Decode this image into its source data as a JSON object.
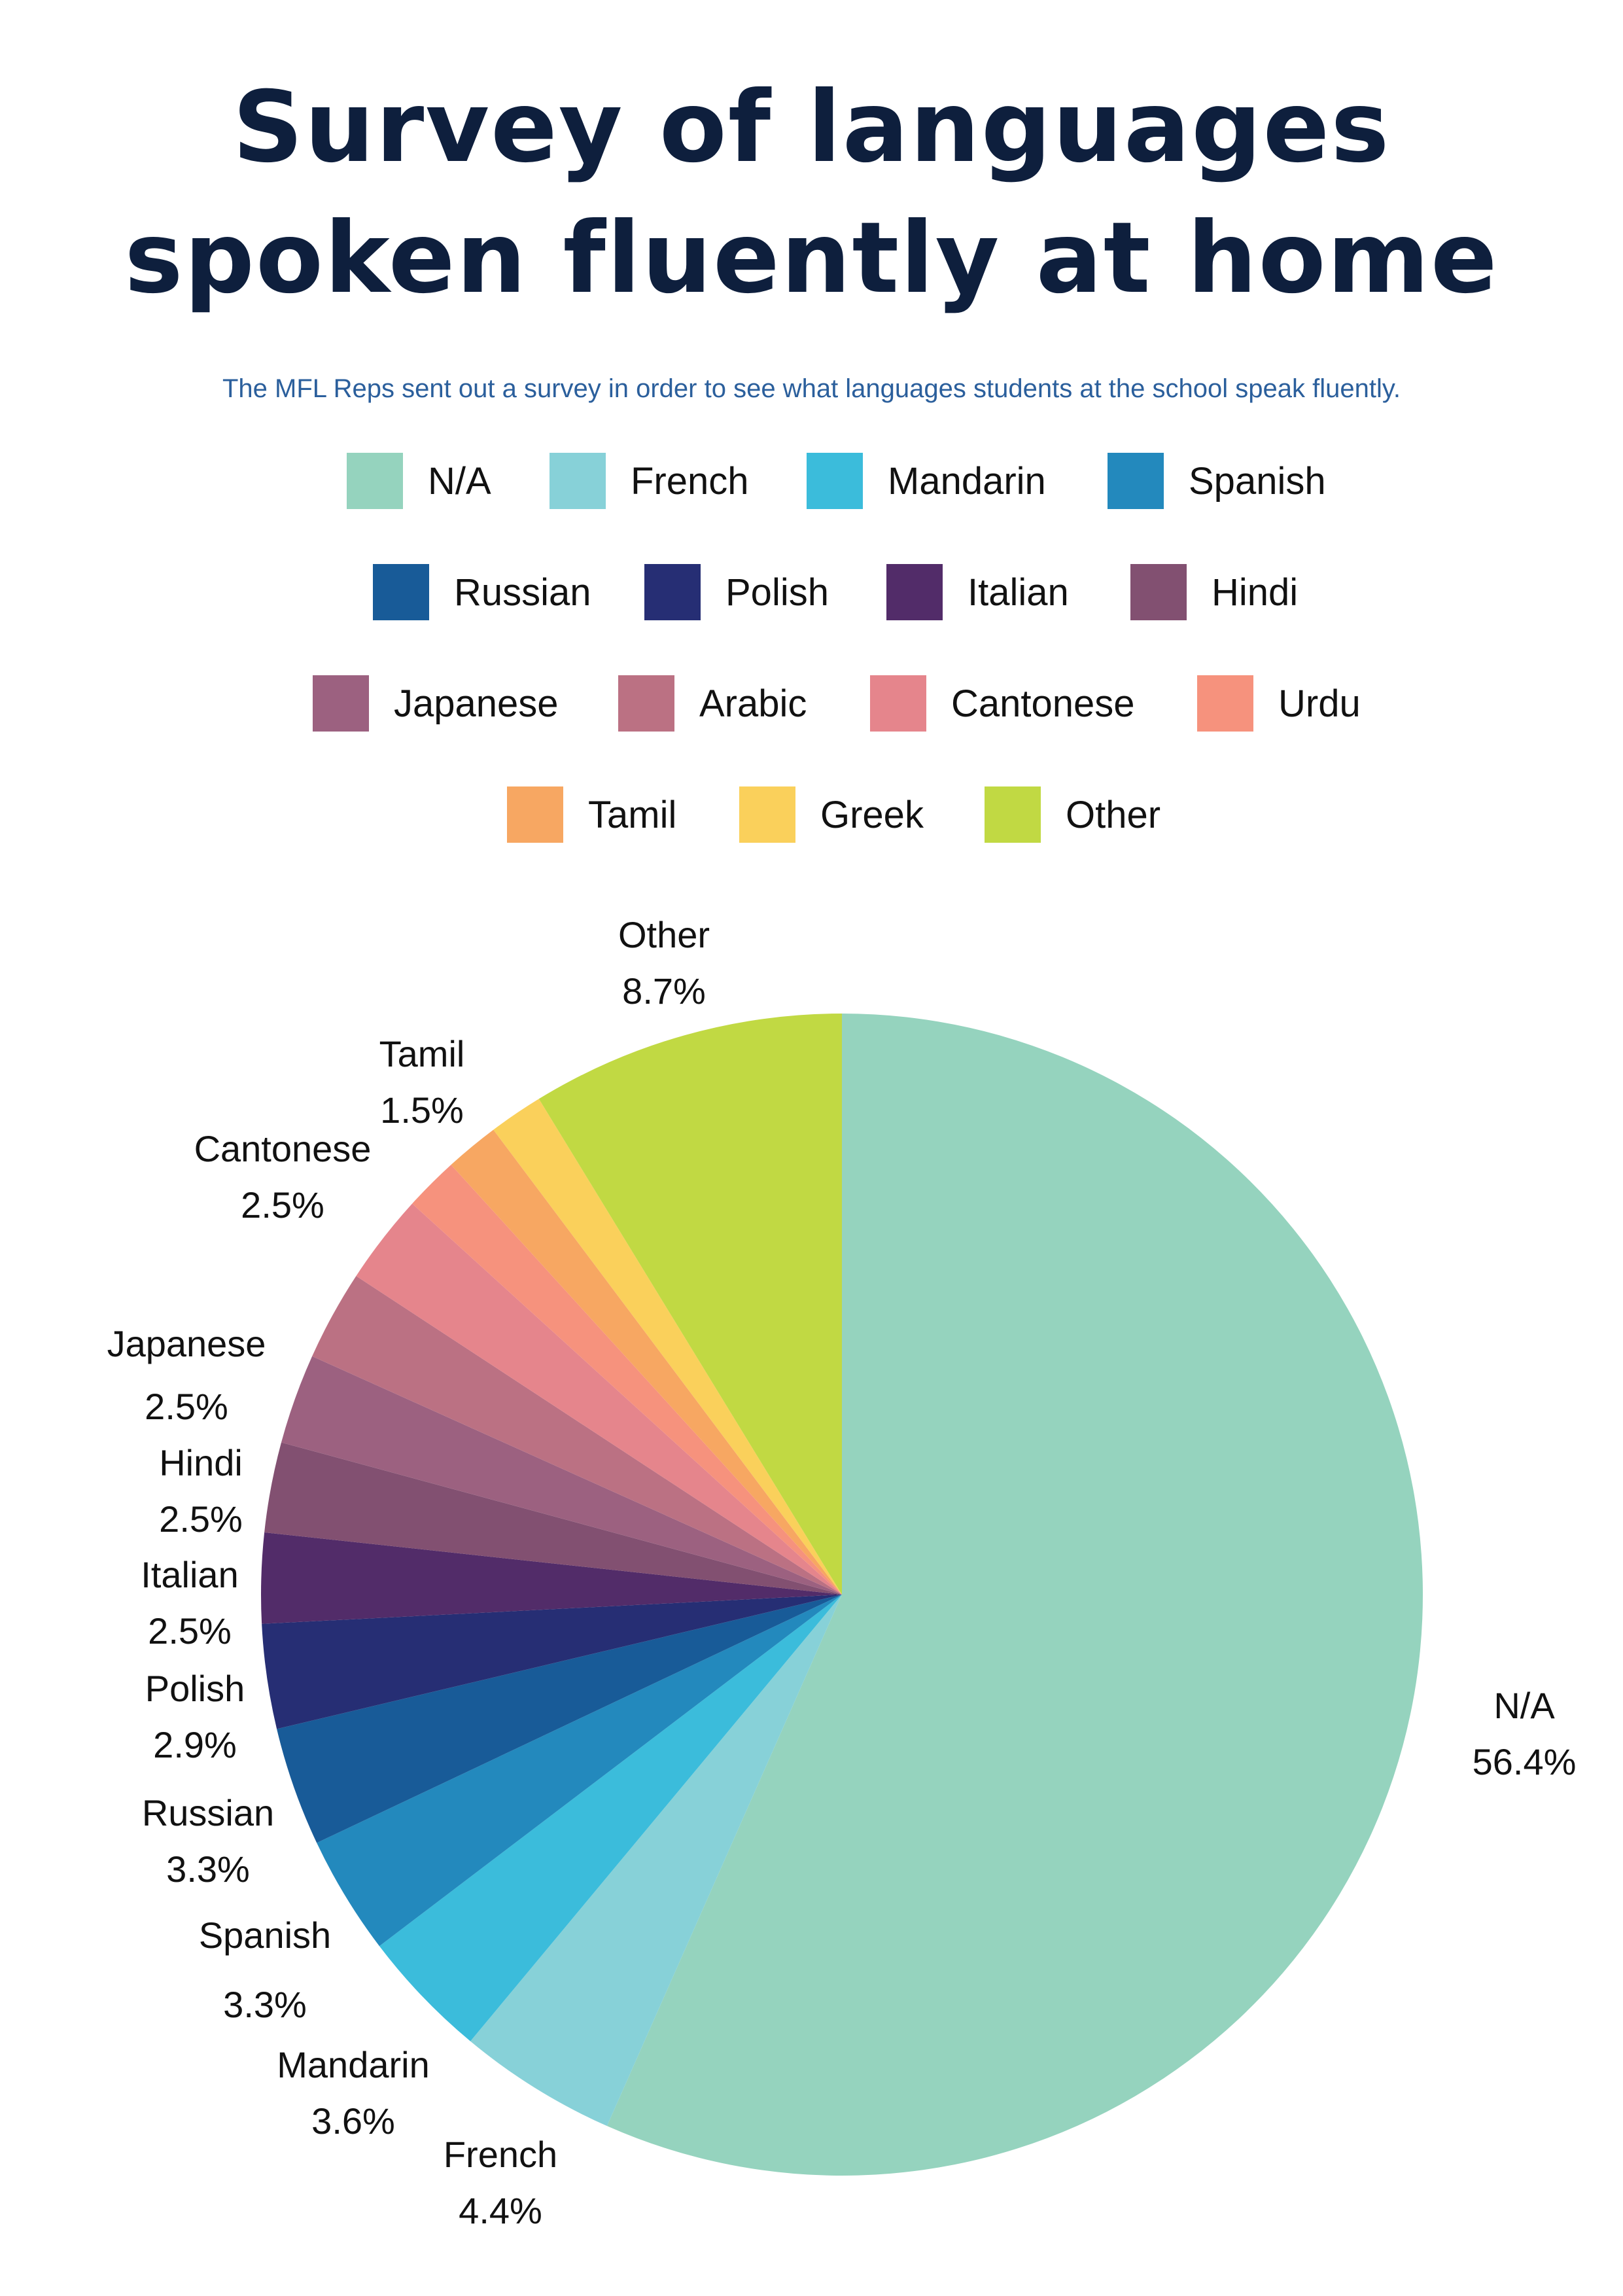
{
  "title": {
    "line1": "Survey of  languages",
    "line2": "spoken fluently at home"
  },
  "subtitle": "The MFL Reps sent out a survey in order to see what languages students at the school speak fluently.",
  "chart_data": {
    "type": "pie",
    "title": "Survey of languages spoken fluently at home",
    "legend_placement": "top",
    "start_angle": "12 o'clock, clockwise",
    "slices": [
      {
        "label": "N/A",
        "value": 56.4,
        "value_label": "56.4%",
        "color": "#95d3be"
      },
      {
        "label": "French",
        "value": 4.4,
        "value_label": "4.4%",
        "color": "#87d1d8"
      },
      {
        "label": "Mandarin",
        "value": 3.6,
        "value_label": "3.6%",
        "color": "#3bbcdb"
      },
      {
        "label": "Spanish",
        "value": 3.3,
        "value_label": "3.3%",
        "color": "#2389bd"
      },
      {
        "label": "Russian",
        "value": 3.3,
        "value_label": "3.3%",
        "color": "#185b98"
      },
      {
        "label": "Polish",
        "value": 2.9,
        "value_label": "2.9%",
        "color": "#262e74"
      },
      {
        "label": "Italian",
        "value": 2.5,
        "value_label": "2.5%",
        "color": "#522c69"
      },
      {
        "label": "Hindi",
        "value": 2.5,
        "value_label": "2.5%",
        "color": "#825071"
      },
      {
        "label": "Japanese",
        "value": 2.5,
        "value_label": "2.5%",
        "color": "#9c6180"
      },
      {
        "label": "Arabic",
        "value": 2.5,
        "value_label": "",
        "color": "#bb7183"
      },
      {
        "label": "Cantonese",
        "value": 2.5,
        "value_label": "2.5%",
        "color": "#e5858c"
      },
      {
        "label": "Urdu",
        "value": 1.5,
        "value_label": "",
        "color": "#f6927d"
      },
      {
        "label": "Tamil",
        "value": 1.5,
        "value_label": "1.5%",
        "color": "#f7a762"
      },
      {
        "label": "Greek",
        "value": 1.5,
        "value_label": "",
        "color": "#fad05b"
      },
      {
        "label": "Other",
        "value": 8.7,
        "value_label": "8.7%",
        "color": "#c1d943"
      }
    ]
  }
}
